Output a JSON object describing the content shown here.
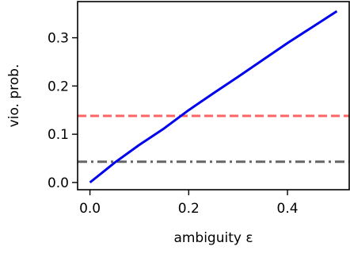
{
  "chart_data": {
    "type": "line",
    "title": "",
    "xlabel": "ambiguity ε",
    "ylabel": "vio. prob.",
    "xlim": [
      -0.025,
      0.525
    ],
    "ylim": [
      -0.015,
      0.375
    ],
    "xticks": [
      0.0,
      0.2,
      0.4
    ],
    "xtick_labels": [
      "0.0",
      "0.2",
      "0.4"
    ],
    "yticks": [
      0.0,
      0.1,
      0.2,
      0.3
    ],
    "ytick_labels": [
      "0.0",
      "0.1",
      "0.2",
      "0.3"
    ],
    "grid": false,
    "legend": "none",
    "series": [
      {
        "style": "solid",
        "color": "#0000ee",
        "x": [
          0.0,
          0.05,
          0.1,
          0.15,
          0.2,
          0.25,
          0.3,
          0.35,
          0.4,
          0.45,
          0.5
        ],
        "y": [
          0.0,
          0.041,
          0.078,
          0.112,
          0.15,
          0.185,
          0.219,
          0.254,
          0.289,
          0.322,
          0.355
        ]
      }
    ],
    "hlines": [
      {
        "y": 0.138,
        "style": "dashed",
        "color": "#ff6464"
      },
      {
        "y": 0.043,
        "style": "dashdot",
        "color": "#666666"
      }
    ]
  }
}
